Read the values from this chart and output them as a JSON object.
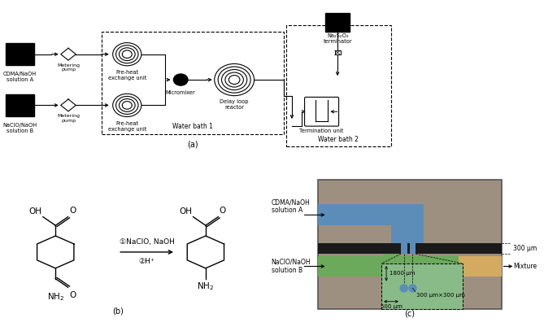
{
  "fig_width": 6.69,
  "fig_height": 4.07,
  "bg_color": "#ffffff",
  "panel_a_label": "(a)",
  "panel_b_label": "(b)",
  "panel_c_label": "(c)",
  "reaction_label_1": "①NaClO, NaOH",
  "reaction_label_2": "②H⁺",
  "cdma_label": "CDMA/NaOH\nsolution A",
  "naocl_label": "NaClO/NaOH\nsolution B",
  "metering_pump_label": "Metering\npump",
  "preheat_label": "Pre-heat\nexchange unit",
  "micromixer_label": "Micromixer",
  "delay_loop_label": "Delay loop\nreactor",
  "water_bath1_label": "Water bath 1",
  "water_bath2_label": "Water bath 2",
  "termination_label": "Termination unit",
  "na2s2o3_label": "Na₂S₂O₃\nterminator",
  "c_cdma_label": "CDMA/NaOH\nsolution A",
  "c_naocl_label": "NaClO/NaOH\nsolution B",
  "mixture_label": "Mixture",
  "dim_1800": "1800 μm",
  "dim_500": "500 μm",
  "dim_300x300": "300 μm×300 μm",
  "dim_300": "300 μm",
  "bg_chip": "#9e9080",
  "blue_channel": "#5b8db8",
  "green_channel": "#6aaa5a",
  "yellow_channel": "#d4aa60",
  "black_bar": "#1a1a1a",
  "zoom_box_color": "#88bb88"
}
